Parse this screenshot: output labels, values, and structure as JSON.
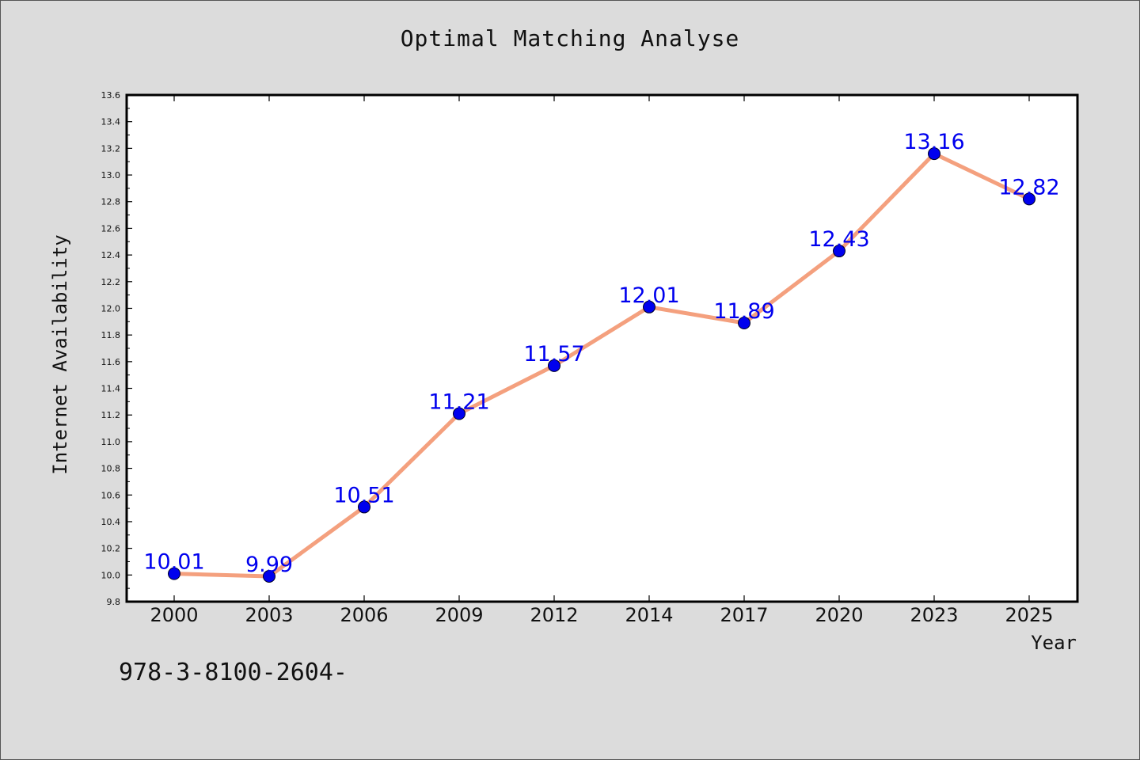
{
  "chart_data": {
    "type": "line",
    "title": "Optimal Matching Analyse",
    "xlabel": "Year",
    "ylabel": "Internet Availability",
    "categories": [
      "2000",
      "2003",
      "2006",
      "2009",
      "2012",
      "2014",
      "2017",
      "2020",
      "2023",
      "2025"
    ],
    "series": [
      {
        "values": [
          10.01,
          9.99,
          10.51,
          11.21,
          11.57,
          12.01,
          11.89,
          12.43,
          13.16,
          12.82
        ]
      }
    ],
    "data_labels": [
      "10.01",
      "9.99",
      "10.51",
      "11.21",
      "11.57",
      "12.01",
      "11.89",
      "12.43",
      "13.16",
      "12.82"
    ],
    "ylim": [
      9.8,
      13.6
    ],
    "y_ticks": [
      "9.8",
      "10.0",
      "10.2",
      "10.4",
      "10.6",
      "10.8",
      "11.0",
      "11.2",
      "11.4",
      "11.6",
      "11.8",
      "12.0",
      "12.2",
      "12.4",
      "12.6",
      "12.8",
      "13.0",
      "13.2",
      "13.4",
      "13.6"
    ],
    "grid": false,
    "line_color": "#f4a07e",
    "marker_color": "#0000ee",
    "label_color": "#0000ee"
  },
  "footer_text": "978-3-8100-2604-"
}
